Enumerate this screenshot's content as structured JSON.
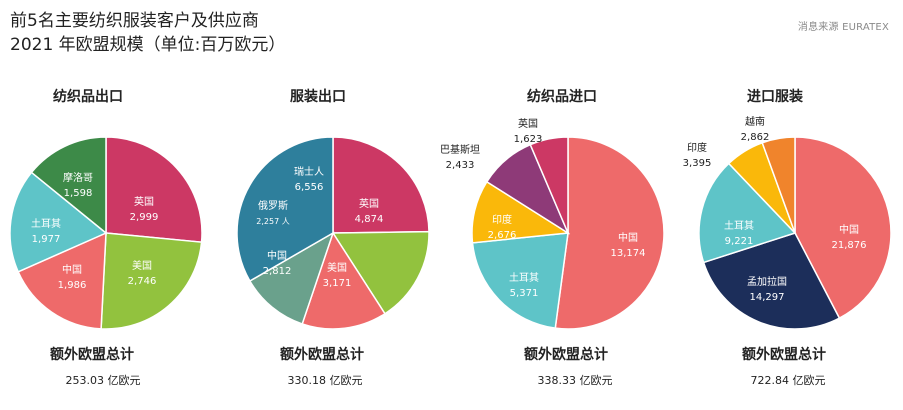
{
  "header": {
    "title_line1": "前5名主要纺织服装客户及供应商",
    "title_line2": "2021 年欧盟规模（单位:百万欧元）",
    "source": "消息来源 EURATEX"
  },
  "colors": {
    "china": "#EE6A6A",
    "uk": "#CC3864",
    "usa": "#92C23E",
    "turkey": "#5EC4C8",
    "morocco": "#3D8A48",
    "switzerland": "#2E7F9C",
    "russia": "#6AA18C",
    "india": "#FAB80A",
    "pakistan": "#8E3A78",
    "bangladesh": "#1C2E5A",
    "vietnam": "#F0842C"
  },
  "chart_data": [
    {
      "type": "pie",
      "title": "纺织品出口",
      "total_label": "额外欧盟总计",
      "total_value": "253.03 亿欧元",
      "slices": [
        {
          "name": "英国",
          "value": 2999,
          "value_label": "2,999",
          "color": "#CC3864"
        },
        {
          "name": "美国",
          "value": 2746,
          "value_label": "2,746",
          "color": "#92C23E"
        },
        {
          "name": "中国",
          "value": 1986,
          "value_label": "1,986",
          "color": "#EE6A6A"
        },
        {
          "name": "土耳其",
          "value": 1977,
          "value_label": "1,977",
          "color": "#5EC4C8"
        },
        {
          "name": "摩洛哥",
          "value": 1598,
          "value_label": "1,598",
          "color": "#3D8A48"
        }
      ]
    },
    {
      "type": "pie",
      "title": "服装出口",
      "total_label": "额外欧盟总计",
      "total_value": "330.18 亿欧元",
      "slices": [
        {
          "name": "英国",
          "value": 4874,
          "value_label": "4,874",
          "color": "#CC3864"
        },
        {
          "name": "美国",
          "value": 3171,
          "value_label": "3,171",
          "color": "#92C23E"
        },
        {
          "name": "中国",
          "value": 2812,
          "value_label": "2,812",
          "color": "#EE6A6A"
        },
        {
          "name": "俄罗斯",
          "value": 2257,
          "value_label": "2,257 人",
          "color": "#6AA18C"
        },
        {
          "name": "瑞士人",
          "value": 6556,
          "value_label": "6,556",
          "color": "#2E7F9C"
        }
      ]
    },
    {
      "type": "pie",
      "title": "纺织品进口",
      "total_label": "额外欧盟总计",
      "total_value": "338.33 亿欧元",
      "slices": [
        {
          "name": "中国",
          "value": 13174,
          "value_label": "13,174",
          "color": "#EE6A6A"
        },
        {
          "name": "土耳其",
          "value": 5371,
          "value_label": "5,371",
          "color": "#5EC4C8"
        },
        {
          "name": "印度",
          "value": 2676,
          "value_label": "2,676",
          "color": "#FAB80A"
        },
        {
          "name": "巴基斯坦",
          "value": 2433,
          "value_label": "2,433",
          "color": "#8E3A78"
        },
        {
          "name": "英国",
          "value": 1623,
          "value_label": "1,623",
          "color": "#CC3864"
        }
      ]
    },
    {
      "type": "pie",
      "title": "进口服装",
      "total_label": "额外欧盟总计",
      "total_value": "722.84 亿欧元",
      "slices": [
        {
          "name": "中国",
          "value": 21876,
          "value_label": "21,876",
          "color": "#EE6A6A"
        },
        {
          "name": "孟加拉国",
          "value": 14297,
          "value_label": "14,297",
          "color": "#1C2E5A"
        },
        {
          "name": "土耳其",
          "value": 9221,
          "value_label": "9,221",
          "color": "#5EC4C8"
        },
        {
          "name": "印度",
          "value": 3395,
          "value_label": "3,395",
          "color": "#FAB80A"
        },
        {
          "name": "越南",
          "value": 2862,
          "value_label": "2,862",
          "color": "#F0842C"
        }
      ]
    }
  ]
}
